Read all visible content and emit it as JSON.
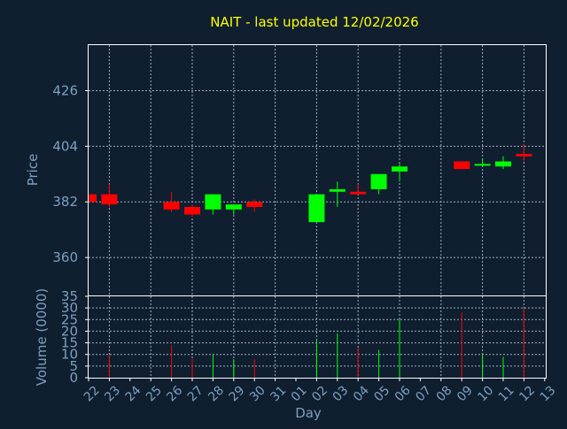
{
  "chart_data": {
    "type": "candlestick",
    "title": "NAIT - last updated 12/02/2026",
    "xlabel": "Day",
    "ylabel": "Price",
    "y2label": "Volume (0000)",
    "ylim": [
      345,
      444
    ],
    "yticks": [
      360,
      382,
      404,
      426
    ],
    "vol_ylim": [
      0,
      35
    ],
    "vol_yticks": [
      0,
      5,
      10,
      15,
      20,
      25,
      30,
      35
    ],
    "grid": true,
    "colors": {
      "up": "#00ff00",
      "down": "#ff0000",
      "background": "#0f1f30",
      "title": "#ffff00",
      "axis_text": "#7f9fbf"
    },
    "x_labels": [
      "22",
      "23",
      "24",
      "25",
      "26",
      "27",
      "28",
      "29",
      "30",
      "31",
      "01",
      "02",
      "03",
      "04",
      "05",
      "06",
      "07",
      "08",
      "09",
      "10",
      "11",
      "12",
      "13"
    ],
    "candles": [
      {
        "day": "22",
        "open": 385,
        "high": 385,
        "low": 382,
        "close": 382,
        "volume": 0
      },
      {
        "day": "23",
        "open": 385,
        "high": 389,
        "low": 380,
        "close": 381,
        "volume": 10
      },
      {
        "day": "26",
        "open": 382,
        "high": 386,
        "low": 378,
        "close": 379,
        "volume": 14
      },
      {
        "day": "27",
        "open": 380,
        "high": 381,
        "low": 376,
        "close": 377,
        "volume": 8
      },
      {
        "day": "28",
        "open": 379,
        "high": 385,
        "low": 377,
        "close": 385,
        "volume": 10
      },
      {
        "day": "29",
        "open": 379,
        "high": 381,
        "low": 377,
        "close": 381,
        "volume": 8
      },
      {
        "day": "30",
        "open": 382,
        "high": 383,
        "low": 378,
        "close": 380,
        "volume": 8
      },
      {
        "day": "02",
        "open": 374,
        "high": 385,
        "low": 374,
        "close": 385,
        "volume": 16
      },
      {
        "day": "03",
        "open": 386,
        "high": 390,
        "low": 380,
        "close": 387,
        "volume": 19
      },
      {
        "day": "04",
        "open": 386,
        "high": 389,
        "low": 385,
        "close": 385,
        "volume": 13
      },
      {
        "day": "05",
        "open": 387,
        "high": 393,
        "low": 385,
        "close": 393,
        "volume": 12
      },
      {
        "day": "06",
        "open": 394,
        "high": 397,
        "low": 390,
        "close": 396,
        "volume": 25
      },
      {
        "day": "09",
        "open": 398,
        "high": 398,
        "low": 395,
        "close": 395,
        "volume": 28
      },
      {
        "day": "10",
        "open": 397,
        "high": 399,
        "low": 396,
        "close": 397,
        "volume": 10
      },
      {
        "day": "11",
        "open": 396,
        "high": 400,
        "low": 395,
        "close": 398,
        "volume": 9
      },
      {
        "day": "12",
        "open": 401,
        "high": 405,
        "low": 398,
        "close": 400,
        "volume": 30
      }
    ]
  }
}
